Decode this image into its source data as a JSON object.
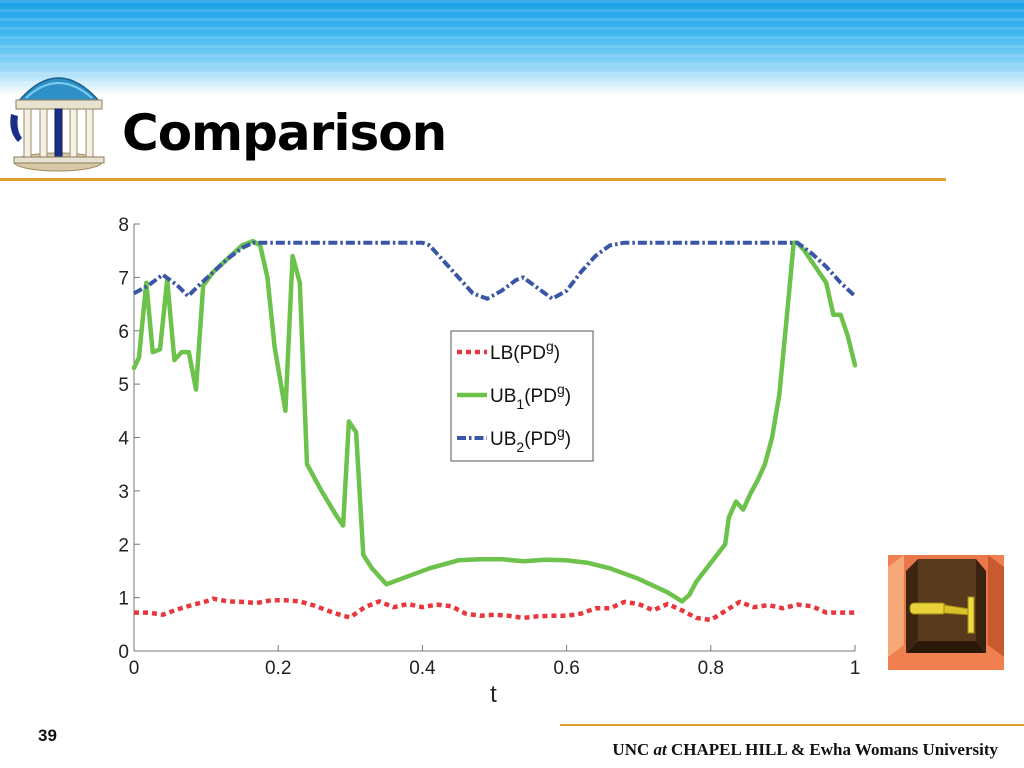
{
  "slide": {
    "title": "Comparison",
    "page_number": "39",
    "footer": {
      "pre": "UNC ",
      "em": "at",
      "post": " CHAPEL HILL & Ewha Womans University"
    },
    "colors": {
      "header": "#3fb6ef",
      "rule": "#e0a030"
    },
    "icons": [
      "old-well-logo-icon",
      "robot-in-channel-icon"
    ]
  },
  "chart_data": {
    "type": "line",
    "xlabel": "t",
    "ylabel": "",
    "xlim": [
      0,
      1
    ],
    "ylim": [
      0,
      8
    ],
    "xticks": [
      0,
      0.2,
      0.4,
      0.6,
      0.8,
      1
    ],
    "xtick_labels": [
      "0",
      "0.2",
      "0.4",
      "0.6",
      "0.8",
      "1"
    ],
    "yticks": [
      0,
      1,
      2,
      3,
      4,
      5,
      6,
      7,
      8
    ],
    "ytick_labels": [
      "0",
      "1",
      "2",
      "3",
      "4",
      "5",
      "6",
      "7",
      "8"
    ],
    "grid": false,
    "legend_position": "center",
    "series": [
      {
        "name": "LB(PDg)",
        "label_base": "LB",
        "label_sub": "",
        "label_rest": "(PD",
        "label_sup": "g",
        "color": "#e8383d",
        "style": "dotted",
        "x": [
          0,
          0.02,
          0.04,
          0.06,
          0.08,
          0.1,
          0.11,
          0.13,
          0.15,
          0.17,
          0.19,
          0.21,
          0.23,
          0.25,
          0.27,
          0.29,
          0.3,
          0.32,
          0.34,
          0.36,
          0.38,
          0.4,
          0.42,
          0.44,
          0.46,
          0.48,
          0.5,
          0.52,
          0.54,
          0.56,
          0.58,
          0.6,
          0.62,
          0.64,
          0.66,
          0.68,
          0.7,
          0.72,
          0.74,
          0.76,
          0.78,
          0.8,
          0.82,
          0.84,
          0.86,
          0.88,
          0.9,
          0.92,
          0.94,
          0.96,
          0.98,
          1
        ],
        "y": [
          0.72,
          0.72,
          0.68,
          0.78,
          0.86,
          0.93,
          0.98,
          0.93,
          0.92,
          0.9,
          0.95,
          0.95,
          0.93,
          0.85,
          0.75,
          0.66,
          0.63,
          0.82,
          0.93,
          0.82,
          0.88,
          0.82,
          0.87,
          0.84,
          0.7,
          0.66,
          0.68,
          0.66,
          0.62,
          0.65,
          0.66,
          0.66,
          0.7,
          0.8,
          0.8,
          0.92,
          0.88,
          0.76,
          0.88,
          0.76,
          0.62,
          0.58,
          0.75,
          0.92,
          0.82,
          0.86,
          0.8,
          0.87,
          0.84,
          0.72,
          0.72,
          0.72
        ]
      },
      {
        "name": "UB1(PDg)",
        "label_base": "UB",
        "label_sub": "1",
        "label_rest": "(PD",
        "label_sup": "g",
        "color": "#6cc24a",
        "style": "solid",
        "x": [
          0,
          0.007,
          0.017,
          0.026,
          0.036,
          0.046,
          0.056,
          0.066,
          0.076,
          0.086,
          0.096,
          0.11,
          0.13,
          0.15,
          0.165,
          0.175,
          0.185,
          0.195,
          0.21,
          0.22,
          0.23,
          0.24,
          0.26,
          0.28,
          0.29,
          0.298,
          0.308,
          0.318,
          0.33,
          0.35,
          0.38,
          0.41,
          0.45,
          0.48,
          0.51,
          0.54,
          0.57,
          0.6,
          0.63,
          0.66,
          0.7,
          0.74,
          0.76,
          0.77,
          0.78,
          0.8,
          0.82,
          0.825,
          0.835,
          0.845,
          0.855,
          0.865,
          0.875,
          0.885,
          0.895,
          0.905,
          0.915,
          0.92,
          0.93,
          0.94,
          0.95,
          0.96,
          0.97,
          0.98,
          0.99,
          1.0
        ],
        "y": [
          5.3,
          5.5,
          6.9,
          5.6,
          5.65,
          6.95,
          5.45,
          5.6,
          5.6,
          4.9,
          6.85,
          7.1,
          7.35,
          7.6,
          7.68,
          7.6,
          7.0,
          5.7,
          4.5,
          7.4,
          6.9,
          3.5,
          3.0,
          2.55,
          2.35,
          4.3,
          4.1,
          1.8,
          1.55,
          1.25,
          1.4,
          1.55,
          1.7,
          1.72,
          1.72,
          1.68,
          1.71,
          1.7,
          1.65,
          1.55,
          1.35,
          1.1,
          0.93,
          1.05,
          1.3,
          1.65,
          2.0,
          2.5,
          2.8,
          2.65,
          2.95,
          3.2,
          3.5,
          4.0,
          4.8,
          6.2,
          7.65,
          7.65,
          7.5,
          7.3,
          7.1,
          6.9,
          6.3,
          6.3,
          5.9,
          5.35
        ]
      },
      {
        "name": "UB2(PDg)",
        "label_base": "UB",
        "label_sub": "2",
        "label_rest": "(PD",
        "label_sup": "g",
        "color": "#3a56a6",
        "style": "dashdot",
        "x": [
          0,
          0.02,
          0.04,
          0.06,
          0.075,
          0.09,
          0.11,
          0.13,
          0.15,
          0.165,
          0.2,
          0.25,
          0.3,
          0.35,
          0.4,
          0.41,
          0.43,
          0.45,
          0.47,
          0.49,
          0.51,
          0.53,
          0.54,
          0.56,
          0.58,
          0.6,
          0.62,
          0.64,
          0.66,
          0.68,
          0.7,
          0.75,
          0.8,
          0.85,
          0.9,
          0.92,
          0.94,
          0.96,
          0.98,
          1
        ],
        "y": [
          6.7,
          6.85,
          7.05,
          6.85,
          6.65,
          6.85,
          7.1,
          7.35,
          7.55,
          7.65,
          7.65,
          7.65,
          7.65,
          7.65,
          7.65,
          7.6,
          7.3,
          7.0,
          6.7,
          6.6,
          6.75,
          6.95,
          7.0,
          6.8,
          6.6,
          6.75,
          7.1,
          7.4,
          7.6,
          7.65,
          7.65,
          7.65,
          7.65,
          7.65,
          7.65,
          7.65,
          7.45,
          7.2,
          6.9,
          6.65
        ]
      }
    ]
  }
}
